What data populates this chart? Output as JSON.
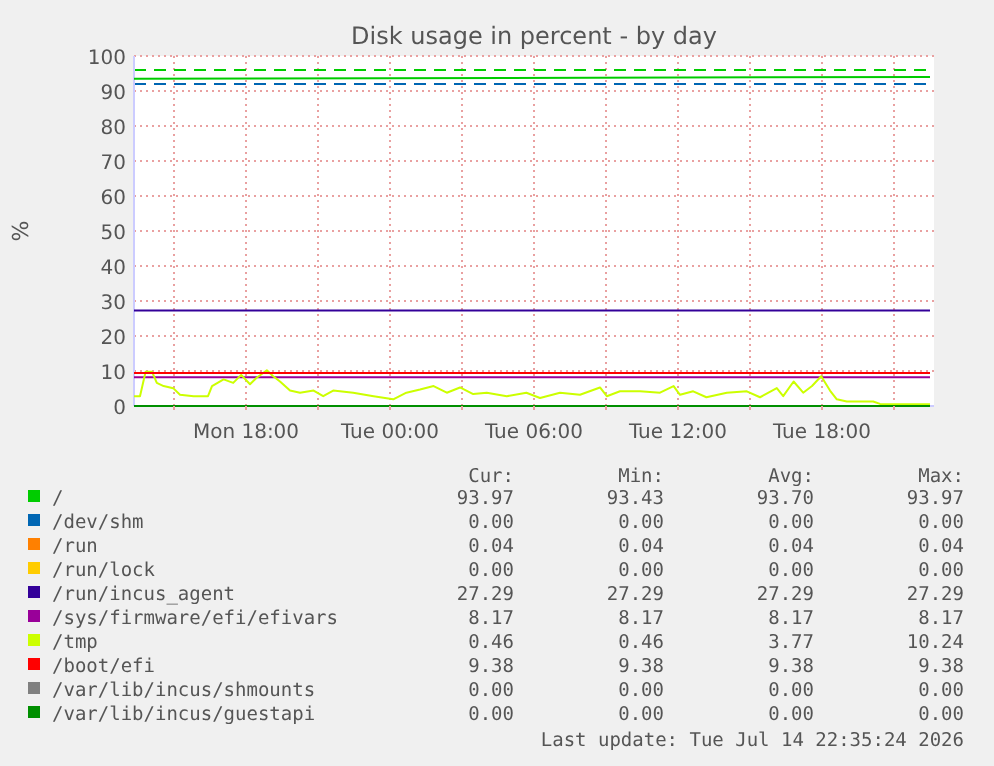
{
  "chart_data": {
    "type": "line",
    "title": "Disk usage in percent - by day",
    "ylabel": "%",
    "xlim": [
      "2026-07-13T13:20",
      "2026-07-14T22:40"
    ],
    "ylim": [
      0,
      100
    ],
    "xticks": [
      {
        "value": "2026-07-13T15:00",
        "label": null
      },
      {
        "value": "2026-07-13T18:00",
        "label": "Mon 18:00"
      },
      {
        "value": "2026-07-13T21:00",
        "label": null
      },
      {
        "value": "2026-07-14T00:00",
        "label": "Tue 00:00"
      },
      {
        "value": "2026-07-14T03:00",
        "label": null
      },
      {
        "value": "2026-07-14T06:00",
        "label": "Tue 06:00"
      },
      {
        "value": "2026-07-14T09:00",
        "label": null
      },
      {
        "value": "2026-07-14T12:00",
        "label": "Tue 12:00"
      },
      {
        "value": "2026-07-14T15:00",
        "label": null
      },
      {
        "value": "2026-07-14T18:00",
        "label": "Tue 18:00"
      },
      {
        "value": "2026-07-14T21:00",
        "label": null
      }
    ],
    "yticks": [
      0,
      10,
      20,
      30,
      40,
      50,
      60,
      70,
      80,
      90,
      100
    ],
    "grid": true,
    "legend": "bottom",
    "line_style": "solid",
    "marker": "none",
    "ref_lines": [
      {
        "axis": "y",
        "value": 96,
        "color": "#00cc00",
        "line_style": "dashed"
      },
      {
        "axis": "y",
        "value": 92,
        "color": "#0066b3",
        "line_style": "dashed"
      }
    ],
    "series": [
      {
        "name": "/",
        "color": "#00cc00",
        "x": [
          "2026-07-13T13:20",
          "2026-07-14T22:30"
        ],
        "values": [
          93.5,
          94
        ]
      },
      {
        "name": "/dev/shm",
        "color": "#0066b3"
      },
      {
        "name": "/run",
        "color": "#ff8000"
      },
      {
        "name": "/run/lock",
        "color": "#ffcc00"
      },
      {
        "name": "/run/incus_agent",
        "color": "#330099",
        "x": [
          "2026-07-13T13:20",
          "2026-07-14T22:30"
        ],
        "values": [
          27.3,
          27.3
        ]
      },
      {
        "name": "/sys/firmware/efi/efivars",
        "color": "#990099",
        "x": [
          "2026-07-13T13:20",
          "2026-07-14T22:30"
        ],
        "values": [
          8.2,
          8.2
        ]
      },
      {
        "name": "/tmp",
        "color": "#ccff00",
        "x": [
          "2026-07-13T13:20",
          "2026-07-13T13:35",
          "2026-07-13T13:49",
          "2026-07-13T14:05",
          "2026-07-13T14:17",
          "2026-07-13T14:34",
          "2026-07-13T14:58",
          "2026-07-13T15:15",
          "2026-07-13T15:49",
          "2026-07-13T16:25",
          "2026-07-13T16:35",
          "2026-07-13T17:04",
          "2026-07-13T17:28",
          "2026-07-13T17:48",
          "2026-07-13T18:10",
          "2026-07-13T18:26",
          "2026-07-13T18:52",
          "2026-07-13T19:08",
          "2026-07-13T19:25",
          "2026-07-13T19:50",
          "2026-07-13T20:15",
          "2026-07-13T20:49",
          "2026-07-13T21:13",
          "2026-07-13T21:38",
          "2026-07-13T22:28",
          "2026-07-13T23:19",
          "2026-07-14T00:08",
          "2026-07-14T00:41",
          "2026-07-14T01:15",
          "2026-07-14T01:49",
          "2026-07-14T02:22",
          "2026-07-14T02:55",
          "2026-07-14T03:28",
          "2026-07-14T04:02",
          "2026-07-14T04:52",
          "2026-07-14T05:41",
          "2026-07-14T06:15",
          "2026-07-14T07:05",
          "2026-07-14T07:55",
          "2026-07-14T08:45",
          "2026-07-14T09:02",
          "2026-07-14T09:35",
          "2026-07-14T10:25",
          "2026-07-14T11:15",
          "2026-07-14T11:49",
          "2026-07-14T12:05",
          "2026-07-14T12:38",
          "2026-07-14T13:11",
          "2026-07-14T14:02",
          "2026-07-14T14:52",
          "2026-07-14T15:25",
          "2026-07-14T16:07",
          "2026-07-14T16:23",
          "2026-07-14T16:49",
          "2026-07-14T17:13",
          "2026-07-14T17:35",
          "2026-07-14T17:58",
          "2026-07-14T18:20",
          "2026-07-14T18:37",
          "2026-07-14T19:02",
          "2026-07-14T20:08",
          "2026-07-14T20:25",
          "2026-07-14T22:30"
        ],
        "values": [
          2.8,
          2.8,
          9.8,
          9.8,
          6.6,
          5.7,
          5.1,
          3.2,
          2.8,
          2.8,
          5.7,
          7.6,
          6.6,
          8.9,
          6.2,
          8,
          10.2,
          8.5,
          7,
          4.4,
          3.8,
          4.4,
          2.8,
          4.4,
          3.8,
          2.8,
          1.9,
          3.8,
          4.7,
          5.7,
          3.8,
          5.3,
          3.4,
          3.8,
          2.8,
          3.8,
          2.3,
          3.8,
          3.2,
          5.3,
          2.8,
          4.2,
          4.2,
          3.8,
          5.7,
          3.2,
          4.2,
          2.5,
          3.8,
          4.2,
          2.5,
          5.1,
          2.8,
          7,
          3.8,
          5.7,
          8.5,
          4.4,
          1.9,
          1.3,
          1.3,
          0.6,
          0.5
        ]
      },
      {
        "name": "/boot/efi",
        "color": "#ff0000",
        "x": [
          "2026-07-13T13:20",
          "2026-07-14T22:30"
        ],
        "values": [
          9.4,
          9.4
        ]
      },
      {
        "name": "/var/lib/incus/shmounts",
        "color": "#808080"
      },
      {
        "name": "/var/lib/incus/guestapi",
        "color": "#008f00",
        "x": [
          "2026-07-13T13:20",
          "2026-07-14T22:30"
        ],
        "values": [
          0,
          0
        ]
      }
    ],
    "annotations": [
      "Cur:",
      "Min:",
      "Avg:",
      "Max:",
      "93.97",
      "93.43",
      "93.70",
      "93.97",
      "0.00",
      "0.00",
      "0.00",
      "0.00",
      "0.04",
      "0.04",
      "0.04",
      "0.04",
      "0.00",
      "0.00",
      "0.00",
      "0.00",
      "27.29",
      "27.29",
      "27.29",
      "27.29",
      "8.17",
      "8.17",
      "8.17",
      "8.17",
      "0.46",
      "0.46",
      "3.77",
      "10.24",
      "9.38",
      "9.38",
      "9.38",
      "9.38",
      "0.00",
      "0.00",
      "0.00",
      "0.00",
      "0.00",
      "0.00",
      "0.00",
      "0.00",
      "Last update: Tue Jul 14 22:35:24 2026"
    ]
  }
}
